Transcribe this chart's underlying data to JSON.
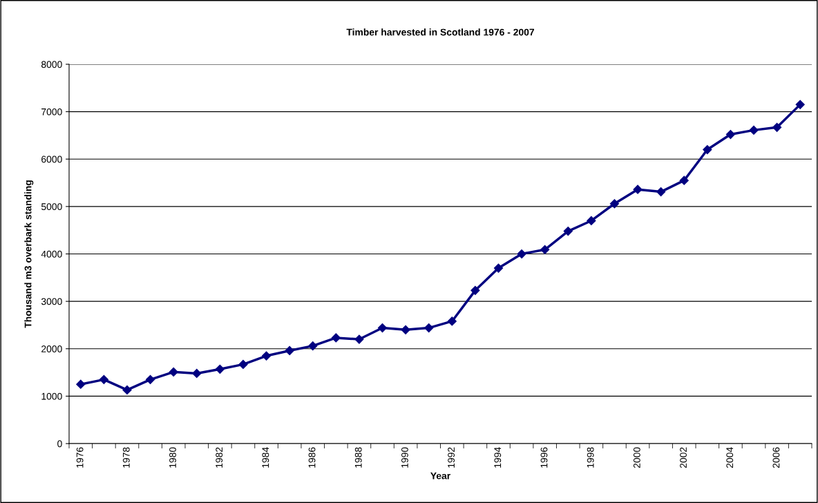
{
  "chart_data": {
    "type": "line",
    "title": "Timber harvested in Scotland 1976 - 2007",
    "xlabel": "Year",
    "ylabel": "Thousand m3 overbark standing",
    "categories": [
      "1976",
      null,
      "1978",
      null,
      "1980",
      null,
      "1982",
      null,
      "1984",
      null,
      "1986",
      null,
      "1988",
      null,
      "1990",
      null,
      "1992",
      null,
      "1994",
      null,
      "1996",
      null,
      "1998",
      null,
      "2000",
      null,
      "2002",
      null,
      "2004",
      null,
      "2006",
      null
    ],
    "series": [
      {
        "color": "#000080",
        "values": [
          1250,
          1350,
          1130,
          1350,
          1510,
          1480,
          1570,
          1670,
          1850,
          1960,
          2060,
          2230,
          2200,
          2440,
          2400,
          2440,
          2580,
          3230,
          3700,
          4000,
          4090,
          4480,
          4700,
          5060,
          5360,
          5310,
          5550,
          6200,
          6520,
          6610,
          6670,
          7150
        ]
      }
    ],
    "ylim": [
      0,
      8000
    ],
    "yticks": [
      0,
      1000,
      2000,
      3000,
      4000,
      5000,
      6000,
      7000,
      8000
    ],
    "grid": "y",
    "marker": "diamond",
    "line_style": "solid",
    "legend": false
  }
}
